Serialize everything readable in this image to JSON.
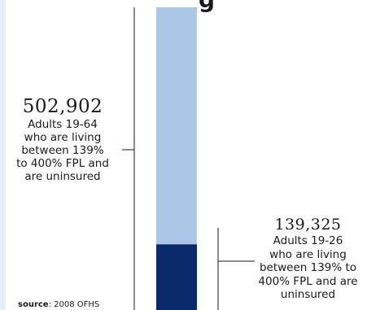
{
  "title_fragment": "g",
  "chart_data": {
    "type": "bar",
    "stacked": true,
    "series": [
      {
        "value": 502902,
        "value_label": "502,902",
        "description_lines": [
          "Adults 19-64",
          "who are living",
          "between 139%",
          "to 400% FPL and",
          "are uninsured"
        ],
        "color": "#abc6e6"
      },
      {
        "value": 139325,
        "value_label": "139,325",
        "description_lines": [
          "Adults 19-26",
          "who are living",
          "between 139% to",
          "400% FPL and are",
          "uninsured"
        ],
        "color": "#0b2a6b"
      }
    ]
  },
  "source": {
    "label": "source",
    "text": ": 2008 OFHS"
  }
}
